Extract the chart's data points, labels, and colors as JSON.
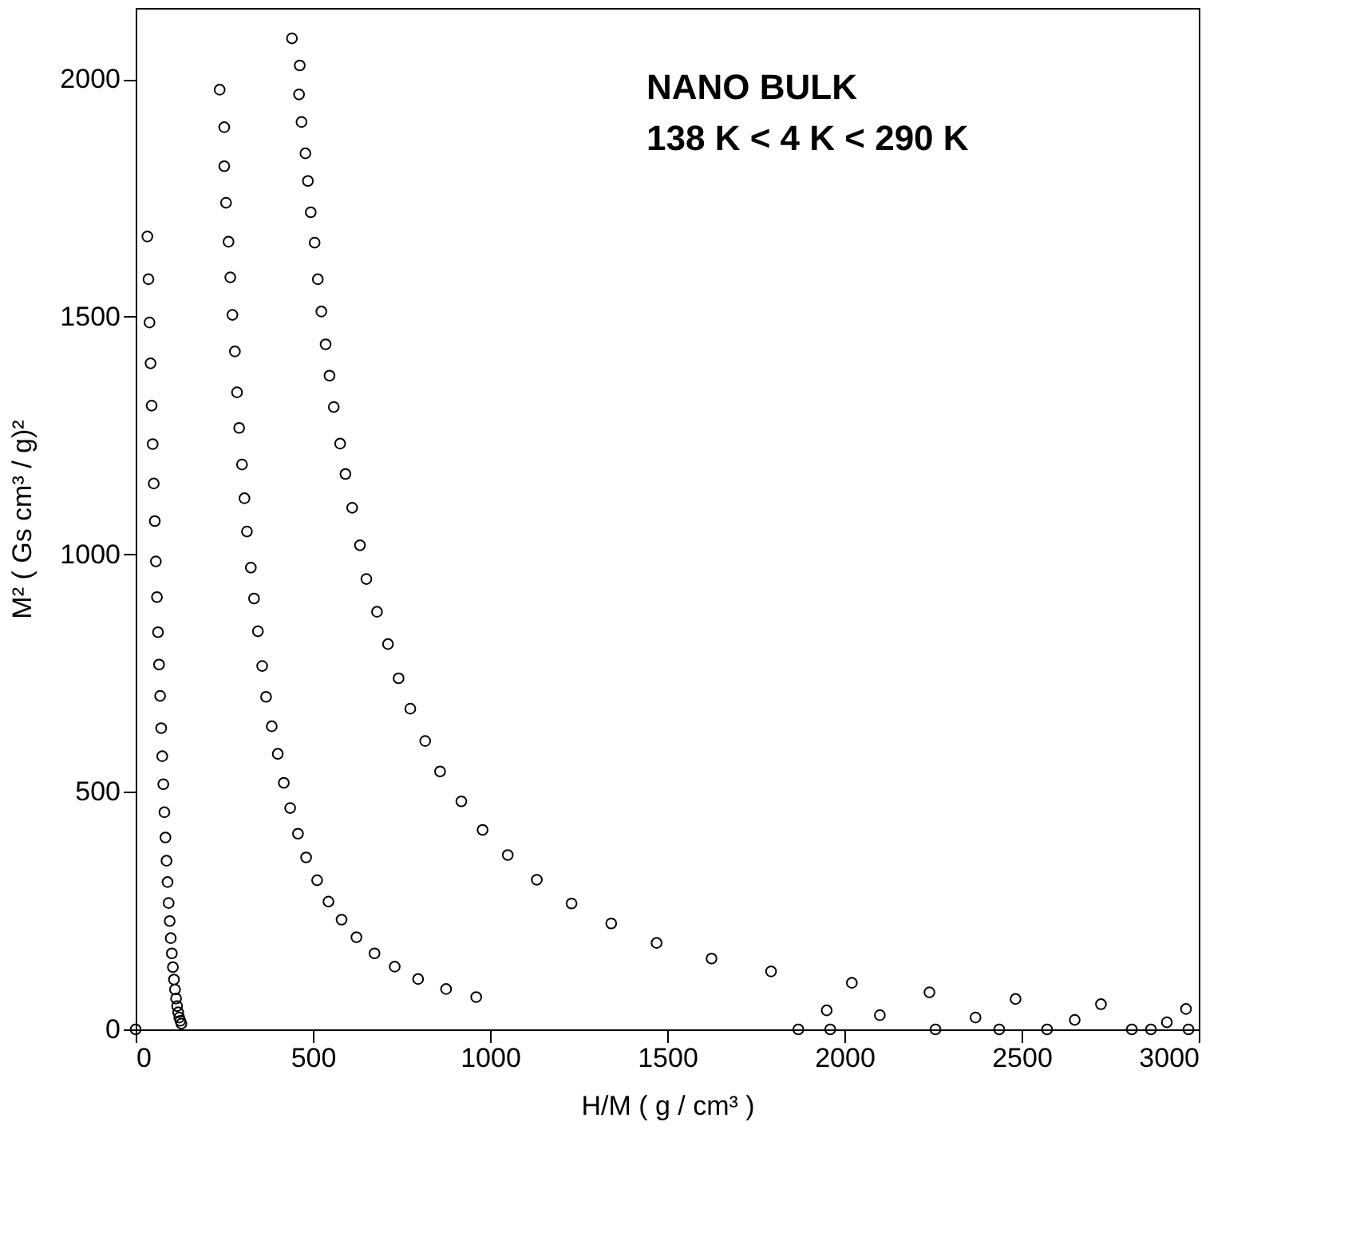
{
  "chart_data": {
    "type": "scatter",
    "xlabel": "H/M ( g / cm³ )",
    "ylabel": "M² ( Gs cm³ / g)²",
    "annotations": [
      "NANO BULK",
      "138 K < 4 K < 290 K"
    ],
    "xlim": [
      0,
      3000
    ],
    "ylim": [
      0,
      2150
    ],
    "xticks": [
      0,
      500,
      1000,
      1500,
      2000,
      2500,
      3000
    ],
    "yticks": [
      0,
      500,
      1000,
      1500,
      2000
    ],
    "grid": false,
    "marker": "circle",
    "color": "#000000",
    "series": [
      {
        "x": [
          33,
          237,
          441
        ],
        "values": [
          1669,
          1978,
          2086
        ]
      },
      {
        "x": [
          36,
          250,
          463
        ],
        "values": [
          1579,
          1899,
          2029
        ]
      },
      {
        "x": [
          39,
          250,
          461
        ],
        "values": [
          1488,
          1817,
          1968
        ]
      },
      {
        "x": [
          42,
          255,
          468
        ],
        "values": [
          1402,
          1740,
          1910
        ]
      },
      {
        "x": [
          45,
          262,
          479
        ],
        "values": [
          1313,
          1658,
          1844
        ]
      },
      {
        "x": [
          48,
          267,
          486
        ],
        "values": [
          1232,
          1583,
          1786
        ]
      },
      {
        "x": [
          51,
          273,
          494
        ],
        "values": [
          1149,
          1504,
          1720
        ]
      },
      {
        "x": [
          54,
          280,
          505
        ],
        "values": [
          1070,
          1427,
          1656
        ]
      },
      {
        "x": [
          57,
          286,
          514
        ],
        "values": [
          985,
          1341,
          1579
        ]
      },
      {
        "x": [
          60,
          292,
          524
        ],
        "values": [
          910,
          1266,
          1511
        ]
      },
      {
        "x": [
          63,
          300,
          536
        ],
        "values": [
          836,
          1189,
          1442
        ]
      },
      {
        "x": [
          66,
          307,
          547
        ],
        "values": [
          768,
          1118,
          1376
        ]
      },
      {
        "x": [
          69,
          314,
          559
        ],
        "values": [
          702,
          1048,
          1310
        ]
      },
      {
        "x": [
          72,
          325,
          577
        ],
        "values": [
          634,
          972,
          1233
        ]
      },
      {
        "x": [
          75,
          334,
          592
        ],
        "values": [
          575,
          907,
          1169
        ]
      },
      {
        "x": [
          78,
          345,
          611
        ],
        "values": [
          516,
          838,
          1098
        ]
      },
      {
        "x": [
          81,
          357,
          633
        ],
        "values": [
          457,
          765,
          1019
        ]
      },
      {
        "x": [
          84,
          368,
          651
        ],
        "values": [
          404,
          700,
          948
        ]
      },
      {
        "x": [
          87,
          384,
          681
        ],
        "values": [
          355,
          638,
          879
        ]
      },
      {
        "x": [
          90,
          401,
          712
        ],
        "values": [
          310,
          580,
          811
        ]
      },
      {
        "x": [
          93,
          418,
          742
        ],
        "values": [
          266,
          519,
          739
        ]
      },
      {
        "x": [
          96,
          436,
          775
        ],
        "values": [
          228,
          466,
          675
        ]
      },
      {
        "x": [
          99,
          458,
          817
        ],
        "values": [
          192,
          412,
          607
        ]
      },
      {
        "x": [
          102,
          481,
          859
        ],
        "values": [
          160,
          362,
          543
        ]
      },
      {
        "x": [
          105,
          512,
          919
        ],
        "values": [
          131,
          314,
          480
        ]
      },
      {
        "x": [
          108,
          544,
          979
        ],
        "values": [
          105,
          269,
          420
        ]
      },
      {
        "x": [
          111,
          581,
          1050
        ],
        "values": [
          84,
          231,
          367
        ]
      },
      {
        "x": [
          114,
          623,
          1132
        ],
        "values": [
          65,
          194,
          315
        ]
      },
      {
        "x": [
          117,
          674,
          1230
        ],
        "values": [
          49,
          160,
          265
        ]
      },
      {
        "x": [
          120,
          731,
          1342
        ],
        "values": [
          36,
          132,
          223
        ]
      },
      {
        "x": [
          123,
          797,
          1470
        ],
        "values": [
          25,
          106,
          182
        ]
      },
      {
        "x": [
          126,
          876,
          1625
        ],
        "values": [
          18,
          85,
          149
        ]
      },
      {
        "x": [
          129,
          961,
          1793
        ],
        "values": [
          12,
          68,
          122
        ]
      },
      {
        "x": [
          1870,
          1950,
          2021
        ],
        "values": [
          0,
          40,
          98
        ]
      },
      {
        "x": [
          1960,
          2100,
          2240
        ],
        "values": [
          0,
          30,
          78
        ]
      },
      {
        "x": [
          2257,
          2370,
          2483
        ],
        "values": [
          0,
          25,
          64
        ]
      },
      {
        "x": [
          2572,
          2650,
          2724
        ],
        "values": [
          0,
          20,
          53
        ]
      },
      {
        "x": [
          2865,
          2910,
          2964
        ],
        "values": [
          0,
          15,
          43
        ]
      },
      {
        "x": [
          0,
          2437,
          2811,
          2971
        ],
        "values": [
          0,
          0,
          0,
          0
        ]
      }
    ]
  }
}
